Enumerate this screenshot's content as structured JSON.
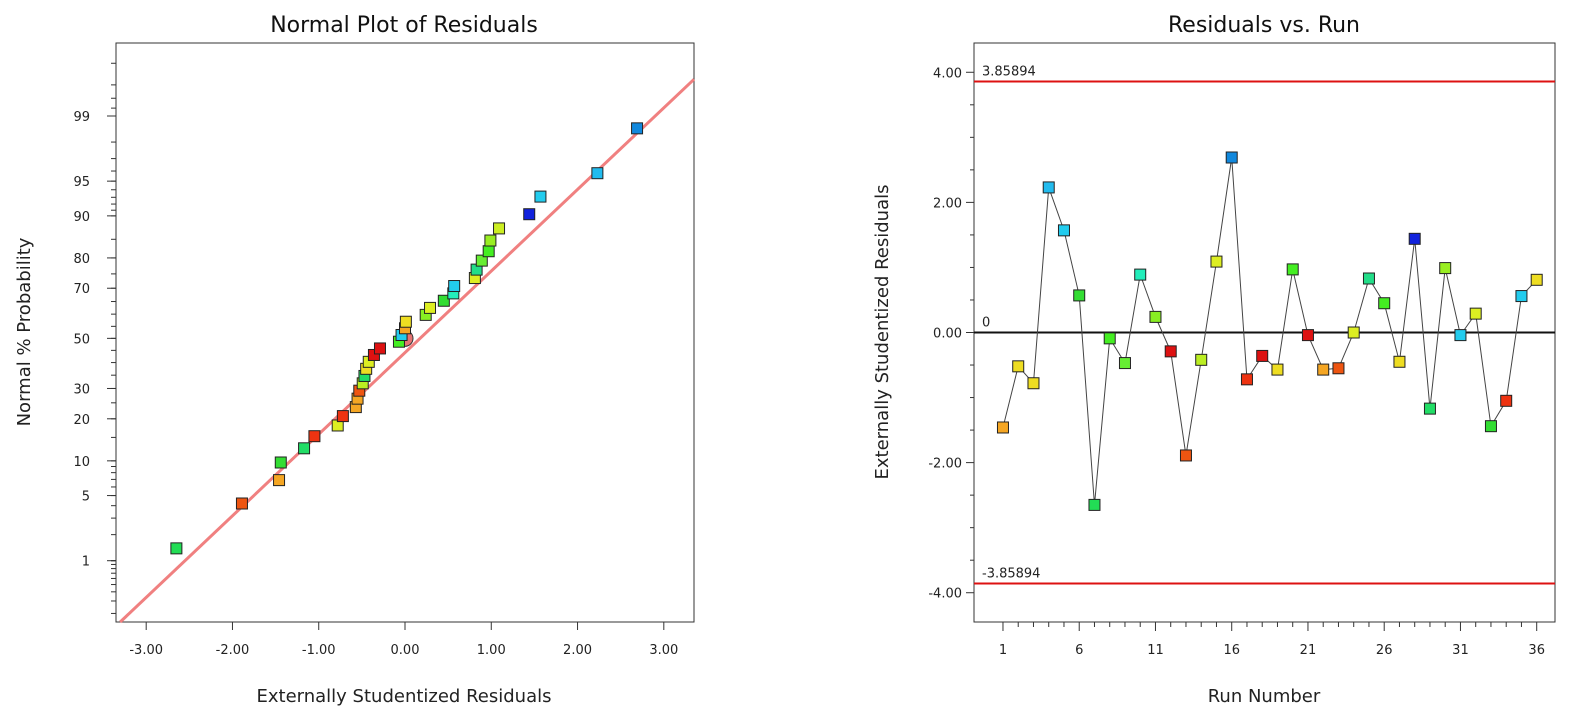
{
  "chart_data": [
    {
      "type": "scatter",
      "title": "Normal Plot of Residuals",
      "xlabel": "Externally Studentized Residuals",
      "ylabel": "Normal % Probability",
      "xlim": [
        -3.35,
        3.35
      ],
      "ylim_probability": [
        0.15,
        99.9
      ],
      "x_ticks": [
        -3.0,
        -2.0,
        -1.0,
        0.0,
        1.0,
        2.0,
        3.0
      ],
      "x_tick_labels": [
        "-3.00",
        "-2.00",
        "-1.00",
        "0.00",
        "1.00",
        "2.00",
        "3.00"
      ],
      "y_ticks": [
        1,
        5,
        10,
        20,
        30,
        50,
        70,
        80,
        90,
        95,
        99
      ],
      "y_tick_labels": [
        "1",
        "5",
        "10",
        "20",
        "30",
        "50",
        "70",
        "80",
        "90",
        "95",
        "99"
      ],
      "reference_line": {
        "color": "#f08080",
        "x_at_p1": -2.55,
        "x_at_p99": 2.9
      },
      "points": [
        {
          "x": -2.65,
          "p": 1.4,
          "color": "#22dd55"
        },
        {
          "x": -1.89,
          "p": 4.2,
          "color": "#ee5511"
        },
        {
          "x": -1.46,
          "p": 6.9,
          "color": "#f5a623"
        },
        {
          "x": -1.44,
          "p": 9.7,
          "color": "#33dd33"
        },
        {
          "x": -1.17,
          "p": 12.5,
          "color": "#22dd66"
        },
        {
          "x": -1.05,
          "p": 15.3,
          "color": "#ee3311"
        },
        {
          "x": -0.78,
          "p": 18.1,
          "color": "#ddee22"
        },
        {
          "x": -0.72,
          "p": 20.8,
          "color": "#ee3311"
        },
        {
          "x": -0.57,
          "p": 23.6,
          "color": "#f5a623"
        },
        {
          "x": -0.55,
          "p": 26.4,
          "color": "#f5a623"
        },
        {
          "x": -0.53,
          "p": 29.2,
          "color": "#ee5511"
        },
        {
          "x": -0.49,
          "p": 31.9,
          "color": "#bbee22"
        },
        {
          "x": -0.47,
          "p": 34.7,
          "color": "#22dd66"
        },
        {
          "x": -0.45,
          "p": 37.5,
          "color": "#eedd22"
        },
        {
          "x": -0.42,
          "p": 40.3,
          "color": "#ddee22"
        },
        {
          "x": -0.36,
          "p": 43.1,
          "color": "#dd1111"
        },
        {
          "x": -0.29,
          "p": 45.8,
          "color": "#dd1111"
        },
        {
          "x": -0.07,
          "p": 48.6,
          "color": "#44ee22"
        },
        {
          "x": -0.04,
          "p": 51.4,
          "color": "#22ccee"
        },
        {
          "x": 0.0,
          "p": 54.2,
          "color": "#f5a623"
        },
        {
          "x": 0.01,
          "p": 56.9,
          "color": "#eedd22"
        },
        {
          "x": 0.24,
          "p": 59.7,
          "color": "#88ee22"
        },
        {
          "x": 0.29,
          "p": 62.5,
          "color": "#ddee22"
        },
        {
          "x": 0.45,
          "p": 65.3,
          "color": "#33dd33"
        },
        {
          "x": 0.56,
          "p": 68.1,
          "color": "#22eebb"
        },
        {
          "x": 0.57,
          "p": 70.8,
          "color": "#22ccee"
        },
        {
          "x": 0.81,
          "p": 73.6,
          "color": "#ddee22"
        },
        {
          "x": 0.83,
          "p": 76.4,
          "color": "#22dd88"
        },
        {
          "x": 0.89,
          "p": 79.2,
          "color": "#66ee33"
        },
        {
          "x": 0.97,
          "p": 81.9,
          "color": "#44ee22"
        },
        {
          "x": 0.99,
          "p": 84.7,
          "color": "#99ee22"
        },
        {
          "x": 1.09,
          "p": 87.5,
          "color": "#ccee22"
        },
        {
          "x": 1.44,
          "p": 90.3,
          "color": "#1122dd"
        },
        {
          "x": 1.57,
          "p": 93.1,
          "color": "#22ccee"
        },
        {
          "x": 2.23,
          "p": 95.8,
          "color": "#22bbee"
        },
        {
          "x": 2.69,
          "p": 98.6,
          "color": "#1188dd"
        }
      ]
    },
    {
      "type": "line",
      "title": "Residuals vs. Run",
      "xlabel": "Run Number",
      "ylabel": "Externally Studentized Residuals",
      "xlim": [
        -0.9,
        37.2
      ],
      "ylim": [
        -4.45,
        4.45
      ],
      "x_ticks": [
        1,
        6,
        11,
        16,
        21,
        26,
        31,
        36
      ],
      "x_tick_labels": [
        "1",
        "6",
        "11",
        "16",
        "21",
        "26",
        "31",
        "36"
      ],
      "y_ticks": [
        -4,
        -2,
        0,
        2,
        4
      ],
      "y_tick_labels": [
        "-4.00",
        "-2.00",
        "0.00",
        "2.00",
        "4.00"
      ],
      "limit_lines": [
        {
          "value": 3.85894,
          "label": "3.85894",
          "color": "#dd1111"
        },
        {
          "value": -3.85894,
          "label": "-3.85894",
          "color": "#dd1111"
        }
      ],
      "zero_line": {
        "value": 0,
        "label": "0"
      },
      "runs": [
        1,
        2,
        3,
        4,
        5,
        6,
        7,
        8,
        9,
        10,
        11,
        12,
        13,
        14,
        15,
        16,
        17,
        18,
        19,
        20,
        21,
        22,
        23,
        24,
        25,
        26,
        27,
        28,
        29,
        30,
        31,
        32,
        33,
        34,
        35,
        36
      ],
      "residuals": [
        -1.46,
        -0.52,
        -0.78,
        2.23,
        1.57,
        0.57,
        -2.65,
        -0.09,
        -0.47,
        0.89,
        0.24,
        -0.29,
        -1.89,
        -0.42,
        1.09,
        2.69,
        -0.72,
        -0.36,
        -0.57,
        0.97,
        -0.04,
        -0.57,
        -0.55,
        0.0,
        0.83,
        0.45,
        -0.45,
        1.44,
        -1.17,
        0.99,
        -0.04,
        0.29,
        -1.44,
        -1.05,
        0.56,
        0.81
      ],
      "colors": [
        "#f5a623",
        "#eedd22",
        "#eedd22",
        "#22bbee",
        "#22ccee",
        "#33dd33",
        "#22dd55",
        "#44ee22",
        "#66ee33",
        "#22eebb",
        "#88ee22",
        "#dd1111",
        "#ee5511",
        "#bbee22",
        "#ddee22",
        "#1188dd",
        "#ee3311",
        "#dd1111",
        "#eedd22",
        "#44ee22",
        "#dd1111",
        "#f5a623",
        "#ee5511",
        "#ddee22",
        "#22dd88",
        "#44ee22",
        "#eedd22",
        "#1122dd",
        "#22dd66",
        "#99ee22",
        "#22ccee",
        "#ddee22",
        "#33dd33",
        "#ee3311",
        "#22ccee",
        "#eedd22"
      ]
    }
  ]
}
